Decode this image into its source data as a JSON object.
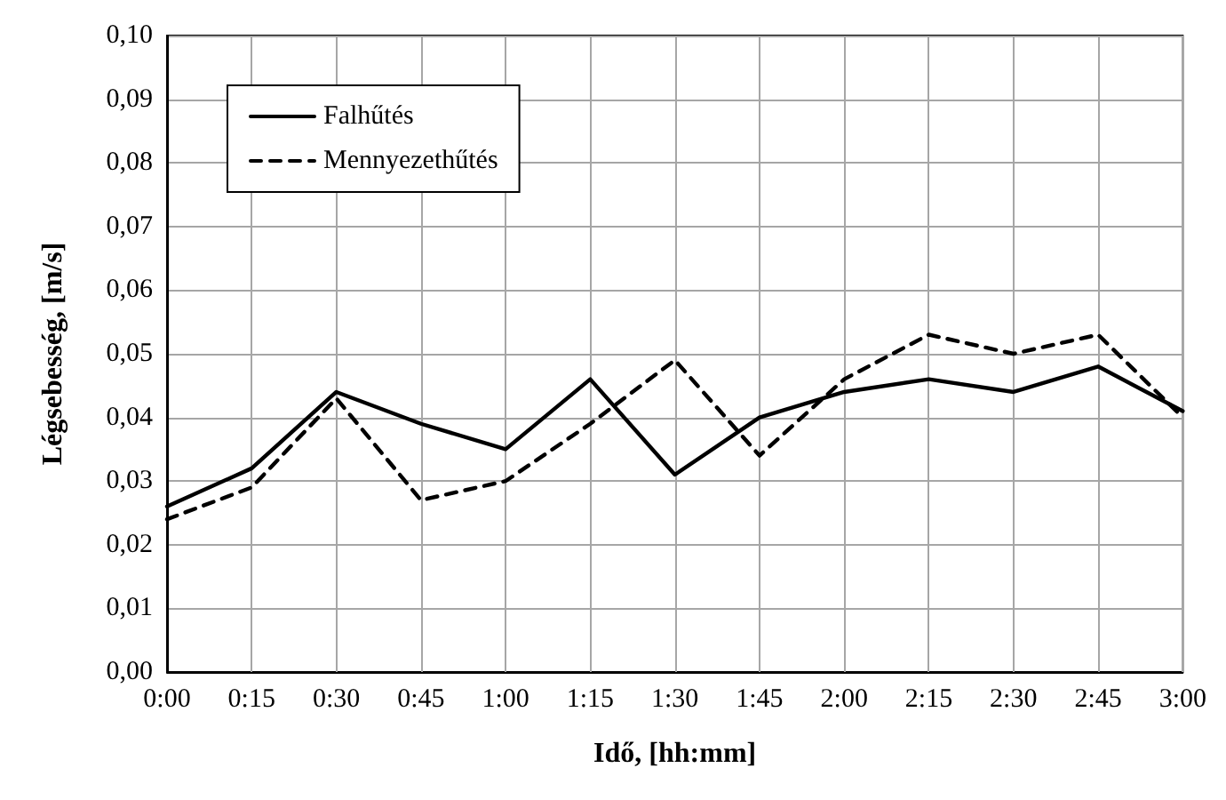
{
  "chart_data": {
    "type": "line",
    "xlabel": "Idő, [hh:mm]",
    "ylabel": "Légsebesség, [m/s]",
    "categories": [
      "0:00",
      "0:15",
      "0:30",
      "0:45",
      "1:00",
      "1:15",
      "1:30",
      "1:45",
      "2:00",
      "2:15",
      "2:30",
      "2:45",
      "3:00"
    ],
    "series": [
      {
        "name": "Falhűtés",
        "color": "#000000",
        "line_style": "solid",
        "values": [
          0.026,
          0.032,
          0.044,
          0.039,
          0.035,
          0.046,
          0.031,
          0.04,
          0.044,
          0.046,
          0.044,
          0.048,
          0.041
        ]
      },
      {
        "name": "Mennyezethűtés",
        "color": "#000000",
        "line_style": "dashed",
        "values": [
          0.024,
          0.029,
          0.043,
          0.027,
          0.03,
          0.039,
          0.049,
          0.034,
          0.046,
          0.053,
          0.05,
          0.053,
          0.04
        ]
      }
    ],
    "ylim": [
      0,
      0.1
    ],
    "yticks": [
      {
        "value": 0,
        "label": "0,00"
      },
      {
        "value": 0.01,
        "label": "0,01"
      },
      {
        "value": 0.02,
        "label": "0,02"
      },
      {
        "value": 0.03,
        "label": "0,03"
      },
      {
        "value": 0.04,
        "label": "0,04"
      },
      {
        "value": 0.05,
        "label": "0,05"
      },
      {
        "value": 0.06,
        "label": "0,06"
      },
      {
        "value": 0.07,
        "label": "0,07"
      },
      {
        "value": 0.08,
        "label": "0,08"
      },
      {
        "value": 0.09,
        "label": "0,09"
      },
      {
        "value": 0.1,
        "label": "0,10"
      }
    ],
    "grid": true,
    "legend": "top left",
    "marker": "none"
  }
}
